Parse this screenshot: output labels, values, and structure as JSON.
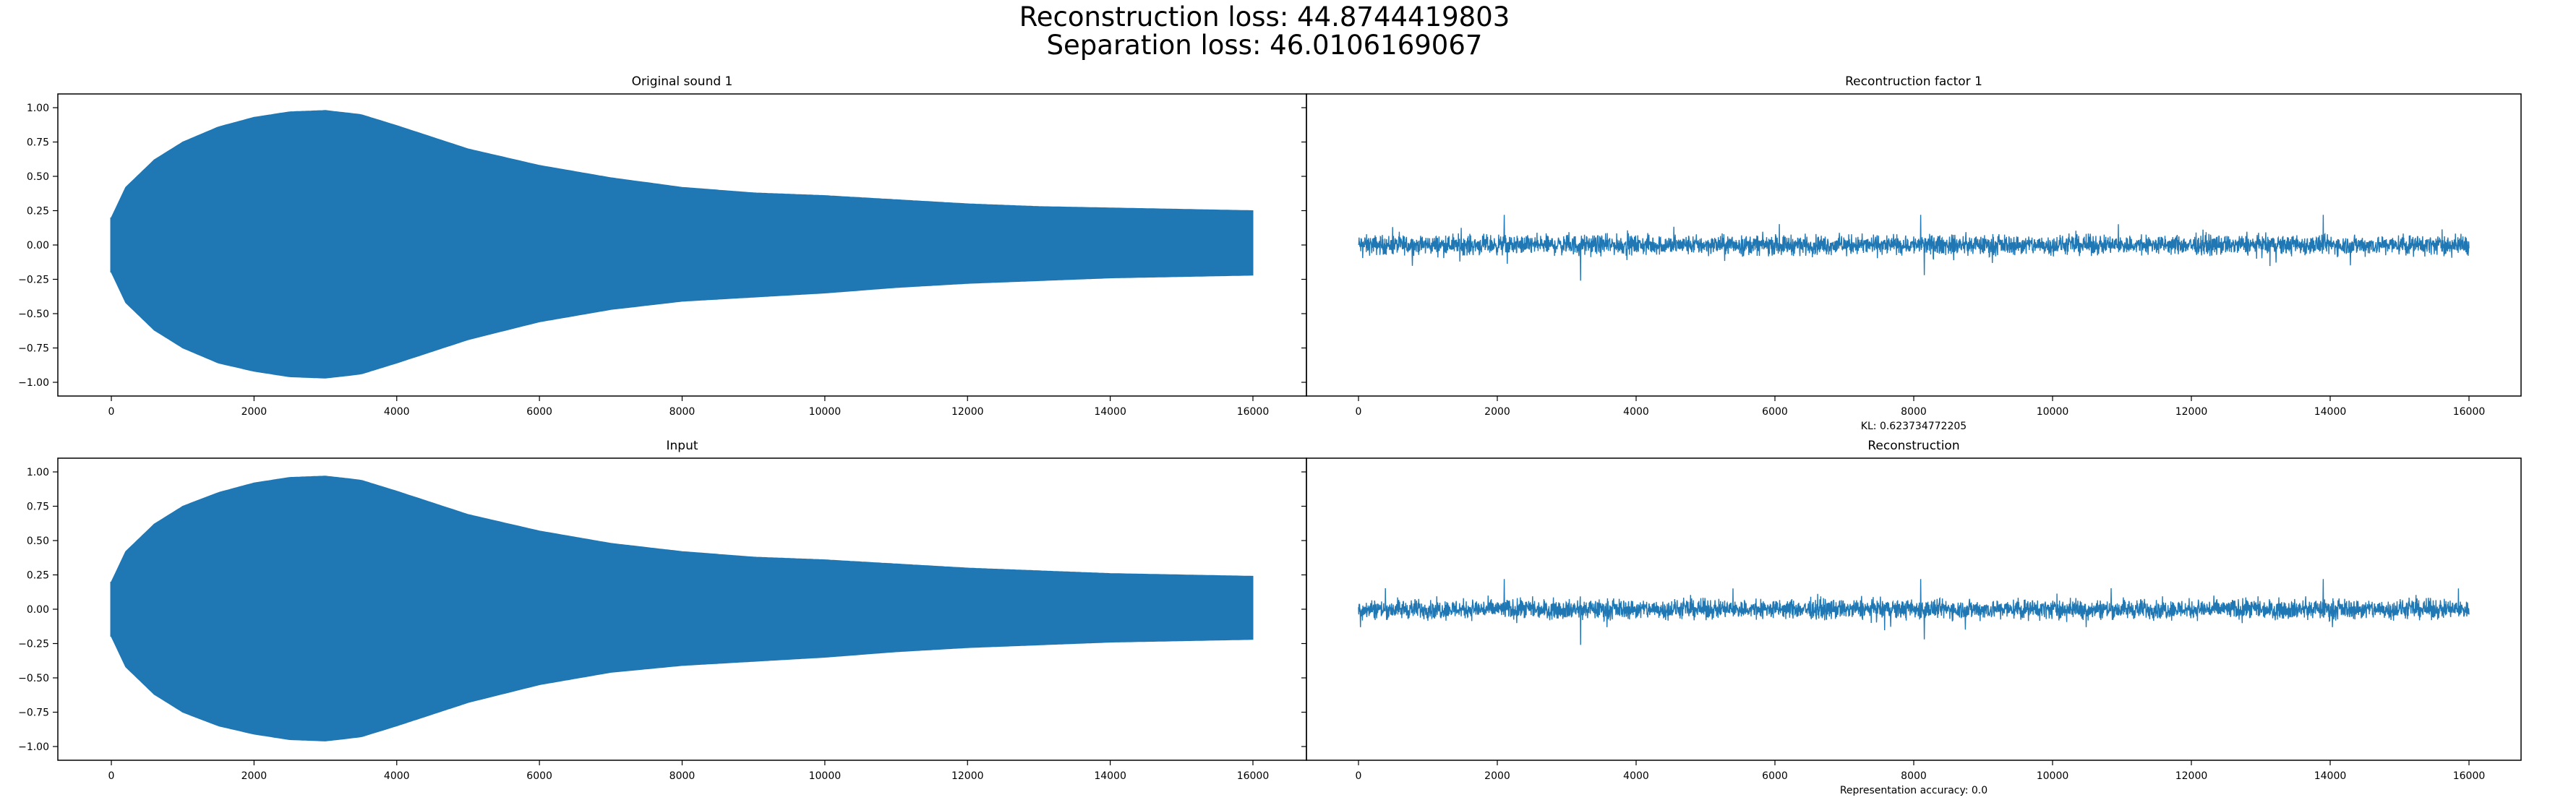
{
  "figure": {
    "title_line1": "Reconstruction loss: 44.8744419803",
    "title_line2": "Separation loss: 46.0106169067"
  },
  "colors": {
    "series": "#1f77b4",
    "axes": "#000000",
    "background": "#ffffff"
  },
  "chart_data": [
    {
      "type": "line",
      "title": "Original sound 1",
      "xlabel": "",
      "ylabel": "",
      "xlim": [
        -750,
        16750
      ],
      "ylim": [
        -1.1,
        1.1
      ],
      "xticks": [
        0,
        2000,
        4000,
        6000,
        8000,
        10000,
        12000,
        14000,
        16000
      ],
      "yticks": [
        -1.0,
        -0.75,
        -0.5,
        -0.25,
        0.0,
        0.25,
        0.5,
        0.75,
        1.0
      ],
      "ytick_labels": [
        "−1.00",
        "−0.75",
        "−0.50",
        "−0.25",
        "0.00",
        "0.25",
        "0.50",
        "0.75",
        "1.00"
      ],
      "signal": "dense oscillation",
      "envelope": [
        [
          0,
          0.2
        ],
        [
          200,
          0.42
        ],
        [
          600,
          0.62
        ],
        [
          1000,
          0.75
        ],
        [
          1500,
          0.86
        ],
        [
          2000,
          0.93
        ],
        [
          2500,
          0.97
        ],
        [
          3000,
          0.98
        ],
        [
          3500,
          0.95
        ],
        [
          4000,
          0.87
        ],
        [
          5000,
          0.7
        ],
        [
          6000,
          0.58
        ],
        [
          7000,
          0.49
        ],
        [
          8000,
          0.42
        ],
        [
          9000,
          0.38
        ],
        [
          10000,
          0.36
        ],
        [
          11000,
          0.33
        ],
        [
          12000,
          0.3
        ],
        [
          13000,
          0.28
        ],
        [
          14000,
          0.27
        ],
        [
          15000,
          0.26
        ],
        [
          16000,
          0.25
        ]
      ],
      "envelope_bottom": [
        [
          0,
          -0.2
        ],
        [
          200,
          -0.42
        ],
        [
          600,
          -0.62
        ],
        [
          1000,
          -0.75
        ],
        [
          1500,
          -0.86
        ],
        [
          2000,
          -0.92
        ],
        [
          2500,
          -0.96
        ],
        [
          3000,
          -0.97
        ],
        [
          3500,
          -0.94
        ],
        [
          4000,
          -0.86
        ],
        [
          5000,
          -0.69
        ],
        [
          6000,
          -0.56
        ],
        [
          7000,
          -0.47
        ],
        [
          8000,
          -0.41
        ],
        [
          9000,
          -0.38
        ],
        [
          10000,
          -0.35
        ],
        [
          11000,
          -0.31
        ],
        [
          12000,
          -0.28
        ],
        [
          13000,
          -0.26
        ],
        [
          14000,
          -0.24
        ],
        [
          15000,
          -0.23
        ],
        [
          16000,
          -0.22
        ]
      ],
      "show_yticklabels": true,
      "footer": ""
    },
    {
      "type": "line",
      "title": "Recontruction factor 1",
      "xlabel": "",
      "ylabel": "",
      "xlim": [
        -750,
        16750
      ],
      "ylim": [
        -1.1,
        1.1
      ],
      "xticks": [
        0,
        2000,
        4000,
        6000,
        8000,
        10000,
        12000,
        14000,
        16000
      ],
      "signal": "noise",
      "noise_amplitude": 0.1,
      "noise_spikes": [
        [
          3200,
          0.28
        ],
        [
          3200,
          -0.26
        ],
        [
          2100,
          0.22
        ],
        [
          8100,
          0.22
        ],
        [
          8150,
          -0.22
        ],
        [
          13900,
          0.22
        ]
      ],
      "show_yticklabels": false,
      "footer": "KL: 0.623734772205"
    },
    {
      "type": "line",
      "title": "Input",
      "xlabel": "",
      "ylabel": "",
      "xlim": [
        -750,
        16750
      ],
      "ylim": [
        -1.1,
        1.1
      ],
      "xticks": [
        0,
        2000,
        4000,
        6000,
        8000,
        10000,
        12000,
        14000,
        16000
      ],
      "yticks": [
        -1.0,
        -0.75,
        -0.5,
        -0.25,
        0.0,
        0.25,
        0.5,
        0.75,
        1.0
      ],
      "ytick_labels": [
        "−1.00",
        "−0.75",
        "−0.50",
        "−0.25",
        "0.00",
        "0.25",
        "0.50",
        "0.75",
        "1.00"
      ],
      "signal": "dense oscillation",
      "envelope": [
        [
          0,
          0.2
        ],
        [
          200,
          0.42
        ],
        [
          600,
          0.62
        ],
        [
          1000,
          0.75
        ],
        [
          1500,
          0.85
        ],
        [
          2000,
          0.92
        ],
        [
          2500,
          0.96
        ],
        [
          3000,
          0.97
        ],
        [
          3500,
          0.94
        ],
        [
          4000,
          0.86
        ],
        [
          5000,
          0.69
        ],
        [
          6000,
          0.57
        ],
        [
          7000,
          0.48
        ],
        [
          8000,
          0.42
        ],
        [
          9000,
          0.38
        ],
        [
          10000,
          0.36
        ],
        [
          11000,
          0.33
        ],
        [
          12000,
          0.3
        ],
        [
          13000,
          0.28
        ],
        [
          14000,
          0.26
        ],
        [
          15000,
          0.25
        ],
        [
          16000,
          0.24
        ]
      ],
      "envelope_bottom": [
        [
          0,
          -0.2
        ],
        [
          200,
          -0.42
        ],
        [
          600,
          -0.62
        ],
        [
          1000,
          -0.75
        ],
        [
          1500,
          -0.85
        ],
        [
          2000,
          -0.91
        ],
        [
          2500,
          -0.95
        ],
        [
          3000,
          -0.96
        ],
        [
          3500,
          -0.93
        ],
        [
          4000,
          -0.85
        ],
        [
          5000,
          -0.68
        ],
        [
          6000,
          -0.55
        ],
        [
          7000,
          -0.46
        ],
        [
          8000,
          -0.41
        ],
        [
          9000,
          -0.38
        ],
        [
          10000,
          -0.35
        ],
        [
          11000,
          -0.31
        ],
        [
          12000,
          -0.28
        ],
        [
          13000,
          -0.26
        ],
        [
          14000,
          -0.24
        ],
        [
          15000,
          -0.23
        ],
        [
          16000,
          -0.22
        ]
      ],
      "show_yticklabels": true,
      "footer": ""
    },
    {
      "type": "line",
      "title": "Reconstruction",
      "xlabel": "",
      "ylabel": "",
      "xlim": [
        -750,
        16750
      ],
      "ylim": [
        -1.1,
        1.1
      ],
      "xticks": [
        0,
        2000,
        4000,
        6000,
        8000,
        10000,
        12000,
        14000,
        16000
      ],
      "signal": "noise",
      "noise_amplitude": 0.1,
      "noise_spikes": [
        [
          3200,
          0.28
        ],
        [
          3200,
          -0.26
        ],
        [
          2100,
          0.22
        ],
        [
          8100,
          0.22
        ],
        [
          8150,
          -0.22
        ],
        [
          13900,
          0.22
        ]
      ],
      "show_yticklabels": false,
      "footer": "Representation accuracy: 0.0"
    }
  ]
}
